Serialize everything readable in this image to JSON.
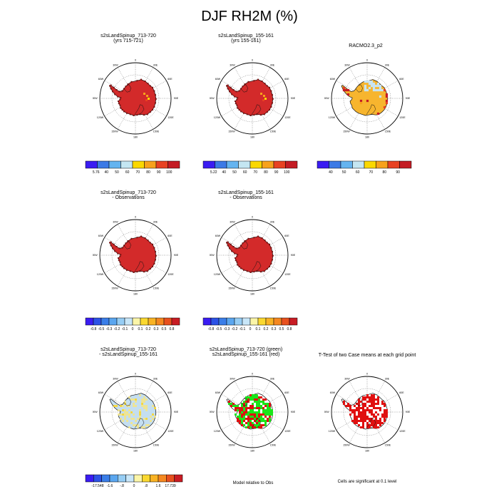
{
  "title": "DJF RH2M (%)",
  "panels": [
    {
      "id": "p1",
      "title1": "s2sLandSpinup_713-720",
      "title2": "(yrs 715-721)",
      "style": "rh",
      "variant": 0
    },
    {
      "id": "p2",
      "title1": "s2sLandSpinup_155-161",
      "title2": "(yrs 155-161)",
      "style": "rh",
      "variant": 1
    },
    {
      "id": "p3",
      "title1": "RACMO2.3_p2",
      "title2": "",
      "style": "obs"
    },
    {
      "id": "p4",
      "title1": "s2sLandSpinup_713-720",
      "title2": "- Observations",
      "style": "rh",
      "variant": 2
    },
    {
      "id": "p5",
      "title1": "s2sLandSpinup_155-161",
      "title2": "- Observations",
      "style": "rh",
      "variant": 3
    },
    {
      "id": "p6",
      "title1": "s2sLandSpinup_713-720",
      "title2": "- s2sLandSpinup_155-161",
      "style": "diff"
    },
    {
      "id": "p7",
      "title1": "s2sLandSpinup_713-720 (green)",
      "title2": "s2sLandSpinup_155-161 (red)",
      "style": "greenred"
    },
    {
      "id": "p8",
      "title1": "T-Test of two Case means at each grid point",
      "title2": "",
      "style": "ttest"
    }
  ],
  "map_labels": {
    "top": "0",
    "bottom": "180",
    "left": "90W",
    "right": "90E",
    "upper_left": "30W",
    "upper_right": "30E",
    "left_upper": "60W",
    "right_upper": "60E",
    "left_lower": "120W",
    "right_lower": "120E",
    "lower_left": "150W",
    "lower_right": "150E"
  },
  "colorbars": [
    {
      "id": "cb1",
      "colors": [
        "#3a1cf2",
        "#3c7ae6",
        "#64b4f0",
        "#c4e6f2",
        "#fad800",
        "#f7a21c",
        "#e84222",
        "#c41c24"
      ],
      "labels": [
        "5.76",
        "40",
        "50",
        "60",
        "70",
        "80",
        "90",
        "100"
      ]
    },
    {
      "id": "cb2",
      "colors": [
        "#3a1cf2",
        "#3c7ae6",
        "#64b4f0",
        "#c4e6f2",
        "#fad800",
        "#f7a21c",
        "#e84222",
        "#c41c24"
      ],
      "labels": [
        "5.22",
        "40",
        "50",
        "60",
        "70",
        "80",
        "90",
        "100"
      ]
    },
    {
      "id": "cb3",
      "colors": [
        "#3a1cf2",
        "#3c7ae6",
        "#64b4f0",
        "#c4e6f2",
        "#fad800",
        "#f7a21c",
        "#e84222",
        "#c41c24"
      ],
      "labels": [
        "40",
        "50",
        "60",
        "70",
        "80",
        "90"
      ]
    },
    {
      "id": "cb4",
      "colors": [
        "#3a1cf2",
        "#2c52e6",
        "#3a7ee8",
        "#5aa6ef",
        "#96cdf4",
        "#c8e6f8",
        "#fbf5a8",
        "#fad830",
        "#f9b324",
        "#f58820",
        "#e8501e",
        "#c81c24"
      ],
      "labels": [
        "-0.8",
        "-0.5",
        "-0.3",
        "-0.2",
        "-0.1",
        "0",
        "0.1",
        "0.2",
        "0.3",
        "0.5",
        "0.8"
      ]
    },
    {
      "id": "cb5",
      "colors": [
        "#3a1cf2",
        "#2c52e6",
        "#3a7ee8",
        "#5aa6ef",
        "#96cdf4",
        "#c8e6f8",
        "#fbf5a8",
        "#fad830",
        "#f9b324",
        "#f58820",
        "#e8501e",
        "#c81c24"
      ],
      "labels": [
        "-0.8",
        "-0.5",
        "-0.3",
        "-0.2",
        "-0.1",
        "0",
        "0.1",
        "0.2",
        "0.3",
        "0.5",
        "0.8"
      ]
    },
    {
      "id": "cb6",
      "colors": [
        "#3a1cf2",
        "#2c52e6",
        "#3a7ee8",
        "#5aa6ef",
        "#96cdf4",
        "#c8e6f8",
        "#fbf5a8",
        "#fad830",
        "#f9b324",
        "#f58820",
        "#e8501e",
        "#c81c24"
      ],
      "labels": [
        "-17.548",
        "-1.6",
        "-.8",
        "0",
        ".8",
        "1.6",
        "17.739"
      ]
    }
  ],
  "captions": {
    "greenred": "Model relative to Obs",
    "ttest": "Cells are significant at 0.1 level"
  },
  "colors": {
    "land_red": "#d32a2a",
    "land_dark_edge": "#7a1010",
    "obs_orange": "#f7b52e",
    "obs_lightblue": "#c8e4f2",
    "diff_blue": "#c4def0",
    "diff_yellow": "#f3e58a",
    "green": "#19e619",
    "red": "#e01010"
  }
}
